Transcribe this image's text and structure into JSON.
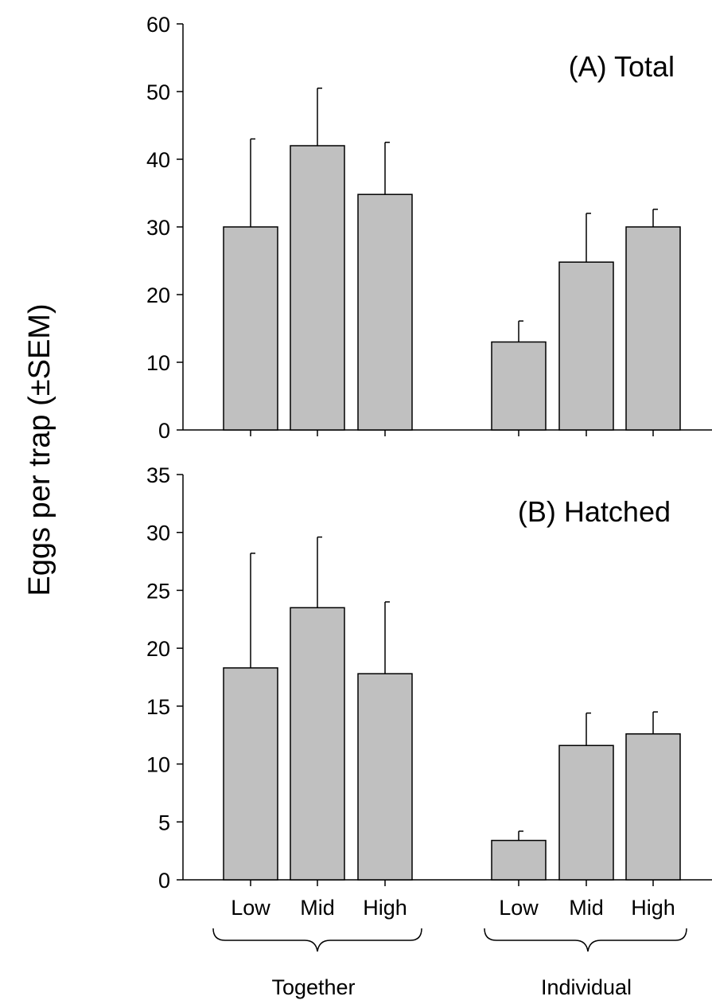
{
  "figure": {
    "ylabel": "Eggs per trap (±SEM)",
    "bar_color": "#c0c0c0",
    "line_color": "#000000"
  },
  "chart_data": [
    {
      "type": "bar",
      "title": "(A) Total",
      "ylabel": "Eggs per trap (±SEM)",
      "ylim": [
        0,
        60
      ],
      "yticks": [
        0,
        10,
        20,
        30,
        40,
        50,
        60
      ],
      "categories": [
        "Low",
        "Mid",
        "High",
        "Low",
        "Mid",
        "High"
      ],
      "groups": [
        {
          "name": "Together",
          "categories": [
            "Low",
            "Mid",
            "High"
          ]
        },
        {
          "name": "Individual",
          "categories": [
            "Low",
            "Mid",
            "High"
          ]
        }
      ],
      "values": [
        30,
        42,
        34.8,
        13,
        24.8,
        30
      ],
      "errors": [
        13,
        8.5,
        7.7,
        3.1,
        7.2,
        2.6
      ],
      "grid": false
    },
    {
      "type": "bar",
      "title": "(B) Hatched",
      "ylabel": "Eggs per trap (±SEM)",
      "ylim": [
        0,
        35
      ],
      "yticks": [
        0,
        5,
        10,
        15,
        20,
        25,
        30,
        35
      ],
      "categories": [
        "Low",
        "Mid",
        "High",
        "Low",
        "Mid",
        "High"
      ],
      "groups": [
        {
          "name": "Together",
          "categories": [
            "Low",
            "Mid",
            "High"
          ]
        },
        {
          "name": "Individual",
          "categories": [
            "Low",
            "Mid",
            "High"
          ]
        }
      ],
      "values": [
        18.3,
        23.5,
        17.8,
        3.4,
        11.6,
        12.6
      ],
      "errors": [
        9.9,
        6.1,
        6.2,
        0.8,
        2.8,
        1.9
      ],
      "grid": false
    }
  ]
}
